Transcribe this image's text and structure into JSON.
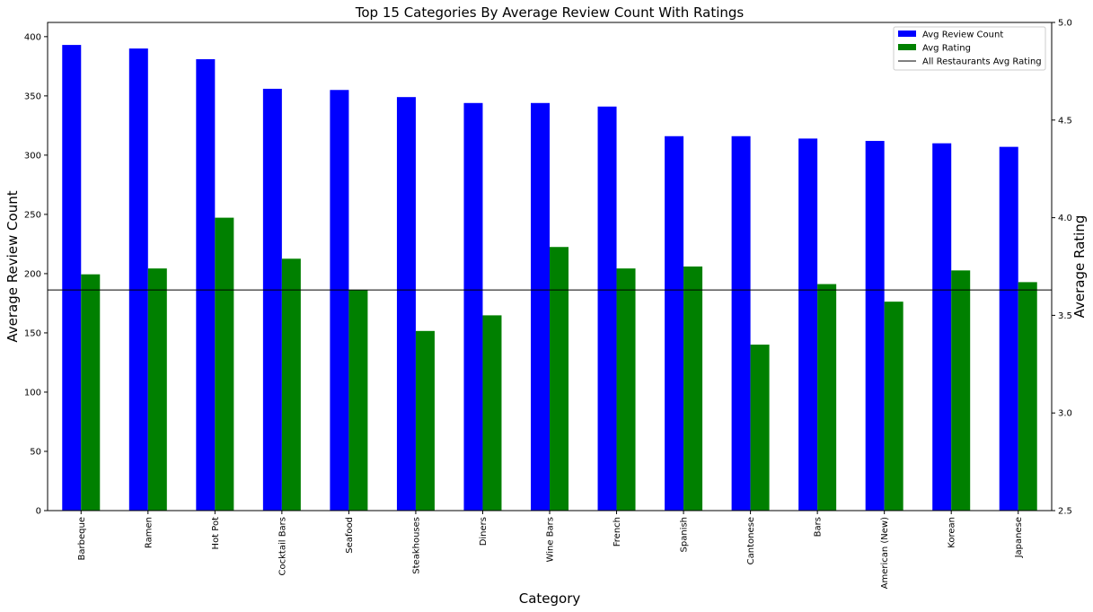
{
  "chart_data": {
    "type": "bar",
    "title": "Top 15 Categories By Average Review Count With Ratings",
    "xlabel": "Category",
    "ylabel": "Average Review Count",
    "y2label": "Average Rating",
    "categories": [
      "Barbeque",
      "Ramen",
      "Hot Pot",
      "Cocktail Bars",
      "Seafood",
      "Steakhouses",
      "Diners",
      "Wine Bars",
      "French",
      "Spanish",
      "Cantonese",
      "Bars",
      "American (New)",
      "Korean",
      "Japanese"
    ],
    "series": [
      {
        "name": "Avg Review Count",
        "axis": "left",
        "color": "#0000ff",
        "values": [
          393,
          390,
          381,
          356,
          355,
          349,
          344,
          344,
          341,
          316,
          316,
          314,
          312,
          310,
          307
        ]
      },
      {
        "name": "Avg Rating",
        "axis": "right",
        "color": "#008000",
        "values": [
          3.71,
          3.74,
          4.0,
          3.79,
          3.63,
          3.42,
          3.5,
          3.85,
          3.74,
          3.75,
          3.35,
          3.66,
          3.57,
          3.73,
          3.67
        ]
      }
    ],
    "reference_line": {
      "name": "All Restaurants Avg Rating",
      "axis": "right",
      "value": 3.63,
      "color": "#000000"
    },
    "ylim": [
      0,
      412
    ],
    "y2lim": [
      2.5,
      5.0
    ],
    "yticks": [
      0,
      50,
      100,
      150,
      200,
      250,
      300,
      350,
      400
    ],
    "y2ticks": [
      2.5,
      3.0,
      3.5,
      4.0,
      4.5,
      5.0
    ],
    "y2tick_labels": [
      "2.5",
      "3.0",
      "3.5",
      "4.0",
      "4.5",
      "5.0"
    ],
    "legend_position": "top-right",
    "grid": false
  }
}
